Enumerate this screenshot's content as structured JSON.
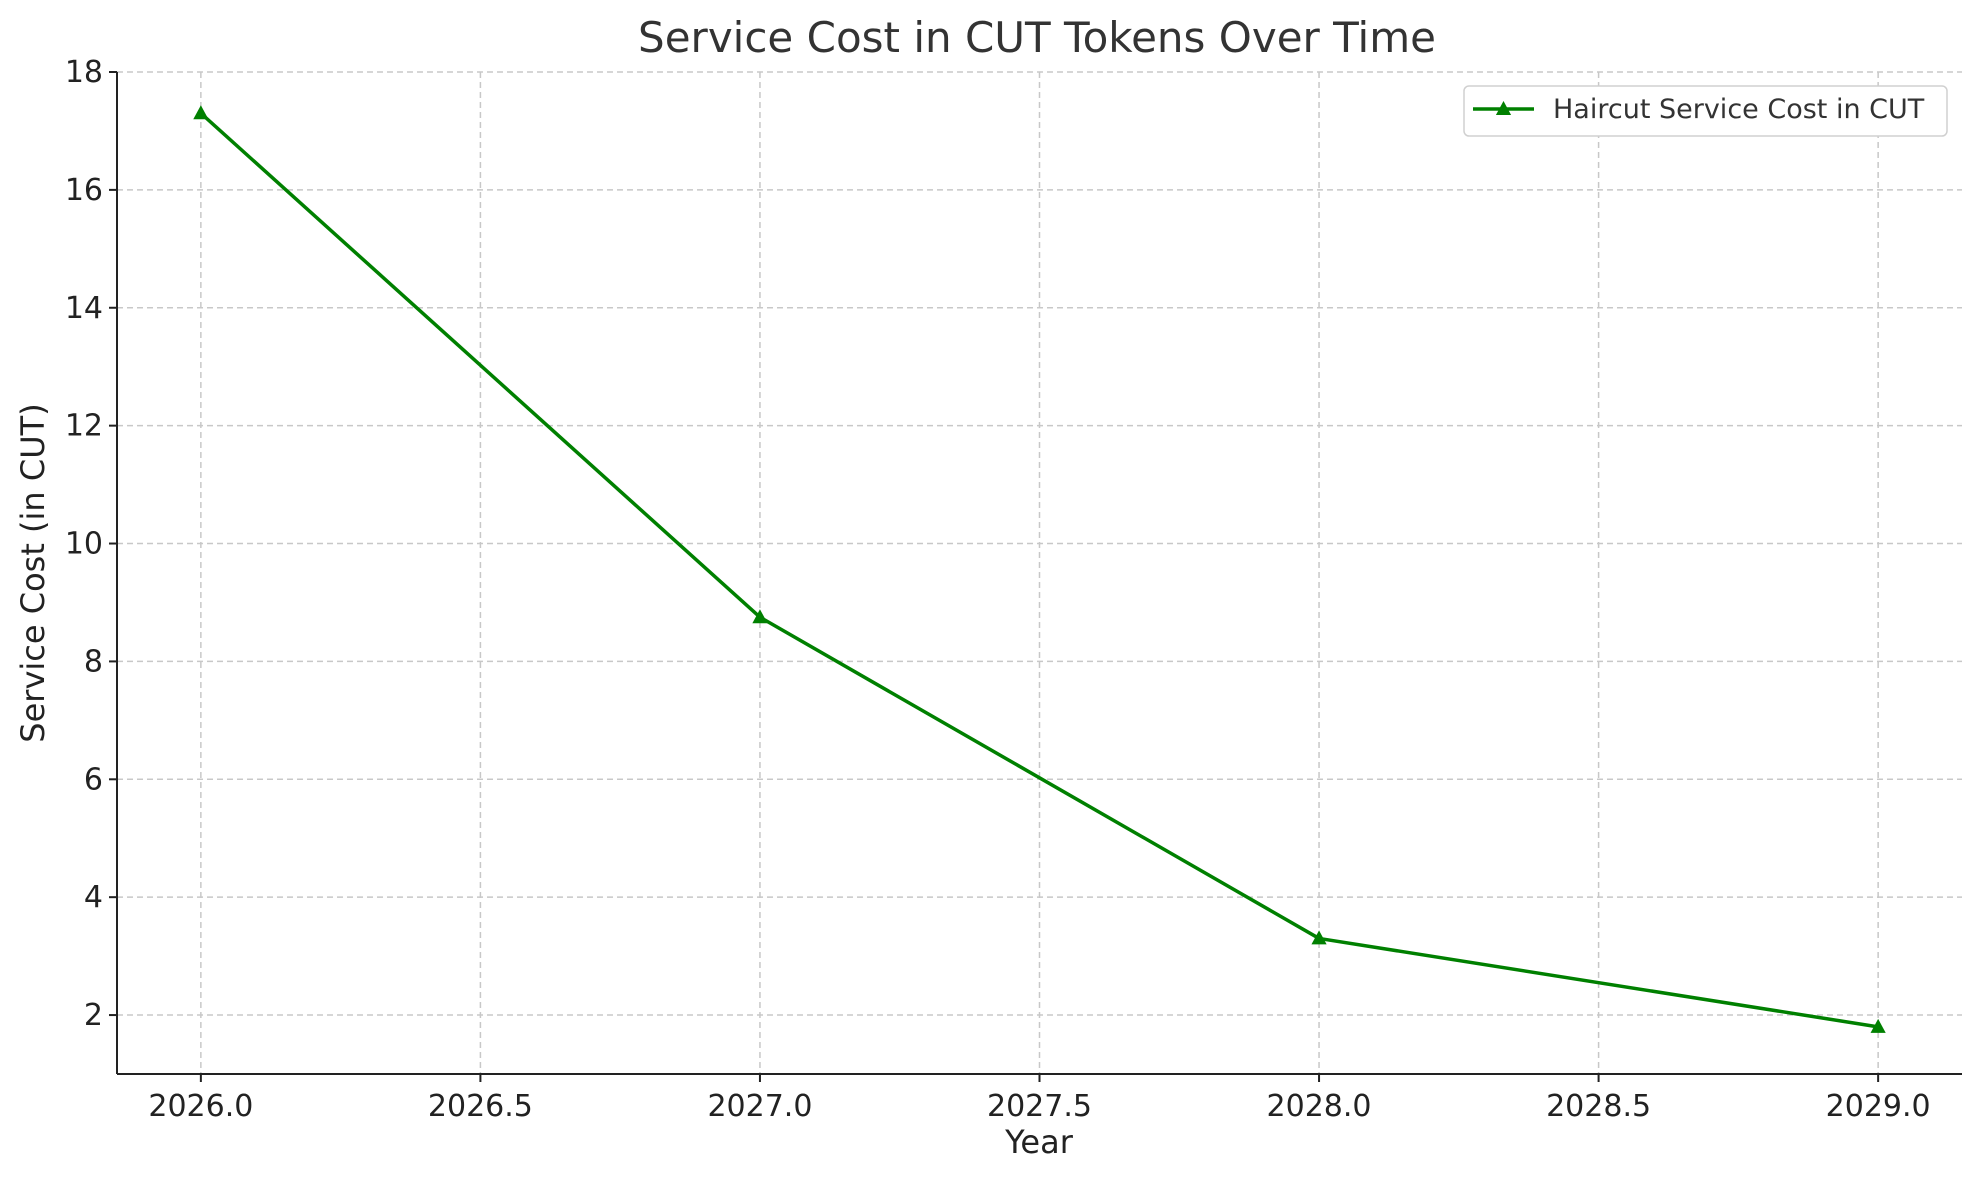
{
  "chart_data": {
    "type": "line",
    "title": "Service Cost in CUT Tokens Over Time",
    "xlabel": "Year",
    "ylabel": "Service Cost (in CUT)",
    "xlim": [
      2025.85,
      2029.15
    ],
    "ylim": [
      1.0,
      18.0
    ],
    "xticks": [
      2026.0,
      2026.5,
      2027.0,
      2027.5,
      2028.0,
      2028.5,
      2029.0
    ],
    "xtick_labels": [
      "2026.0",
      "2026.5",
      "2027.0",
      "2027.5",
      "2028.0",
      "2028.5",
      "2029.0"
    ],
    "yticks": [
      2,
      4,
      6,
      8,
      10,
      12,
      14,
      16,
      18
    ],
    "ytick_labels": [
      "2",
      "4",
      "6",
      "8",
      "10",
      "12",
      "14",
      "16",
      "18"
    ],
    "grid": true,
    "legend_position": "top-right",
    "series": [
      {
        "name": "Haircut Service Cost in CUT",
        "color": "#008000",
        "marker": "triangle-up",
        "x": [
          2026,
          2027,
          2028,
          2029
        ],
        "y": [
          17.3,
          8.75,
          3.3,
          1.8
        ]
      }
    ]
  }
}
